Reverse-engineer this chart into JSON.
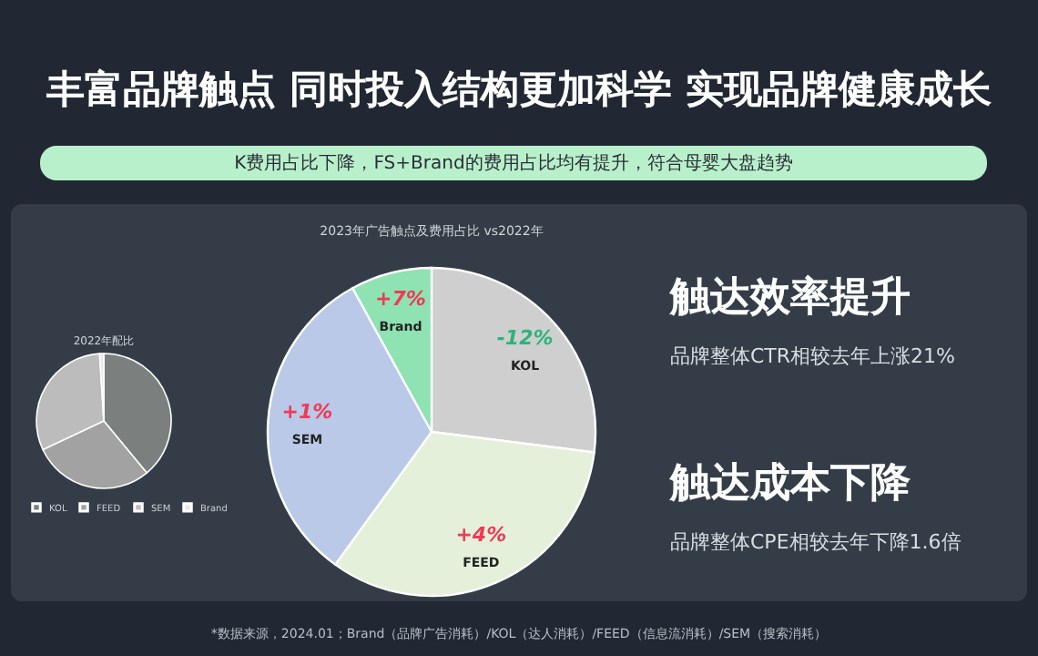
{
  "chart_data": [
    {
      "type": "other",
      "title": "丰富品牌触点 同时投入结构更加科学 实现品牌健康成长",
      "subtitle": "K费用占比下降，FS+Brand的费用占比均有提升，符合母婴大盘趋势",
      "annotations": [
        "触达效率提升",
        "品牌整体CTR相较去年上涨21%",
        "触达成本下降",
        "品牌整体CPE相较去年下降1.6倍",
        "*数据来源，2024.01；Brand（品牌广告消耗）/KOL（达人消耗）/FEED（信息流消耗）/SEM（搜索消耗）"
      ]
    },
    {
      "type": "pie",
      "title": "2022年配比",
      "categories": [
        "KOL",
        "FEED",
        "SEM",
        "Brand"
      ],
      "values": [
        39,
        29,
        31,
        1
      ],
      "colors": [
        "#7b807f",
        "#a2a2a2",
        "#bcbcbc",
        "#e8e8e8"
      ],
      "legend": "bottom"
    },
    {
      "type": "pie",
      "title": "2023年广告触点及费用占比 vs2022年",
      "categories": [
        "KOL",
        "FEED",
        "SEM",
        "Brand"
      ],
      "values": [
        27,
        33,
        32,
        8
      ],
      "colors": [
        "#cfcfcf",
        "#e4f0da",
        "#b9c9e7",
        "#8fe2b1"
      ],
      "legend": false,
      "annotations": [
        {
          "text": "-12%",
          "x": "KOL"
        },
        {
          "text": "+4%",
          "x": "FEED"
        },
        {
          "text": "+1%",
          "x": "SEM"
        },
        {
          "text": "+7%",
          "x": "Brand"
        }
      ]
    }
  ]
}
